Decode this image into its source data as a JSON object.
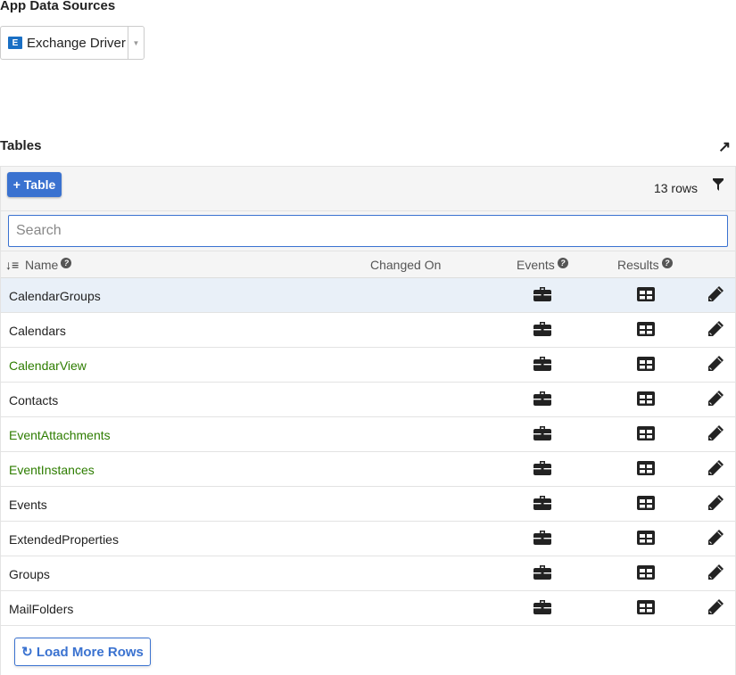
{
  "app_data_sources": {
    "title": "App Data Sources",
    "selected": "Exchange Driver",
    "icon": "exchange-icon"
  },
  "tables": {
    "title": "Tables",
    "add_label": "+ Table",
    "row_count": "13 rows",
    "search_placeholder": "Search",
    "columns": {
      "name": "Name",
      "changed_on": "Changed On",
      "events": "Events",
      "results": "Results"
    },
    "rows": [
      {
        "name": "CalendarGroups",
        "green": false,
        "selected": true
      },
      {
        "name": "Calendars",
        "green": false
      },
      {
        "name": "CalendarView",
        "green": true
      },
      {
        "name": "Contacts",
        "green": false
      },
      {
        "name": "EventAttachments",
        "green": true
      },
      {
        "name": "EventInstances",
        "green": true
      },
      {
        "name": "Events",
        "green": false
      },
      {
        "name": "ExtendedProperties",
        "green": false
      },
      {
        "name": "Groups",
        "green": false
      },
      {
        "name": "MailFolders",
        "green": false
      }
    ],
    "load_more": "Load More Rows"
  },
  "colors": {
    "accent": "#3a72d0",
    "green_name": "#2e7d00",
    "selected_row": "#e9f0f8"
  }
}
